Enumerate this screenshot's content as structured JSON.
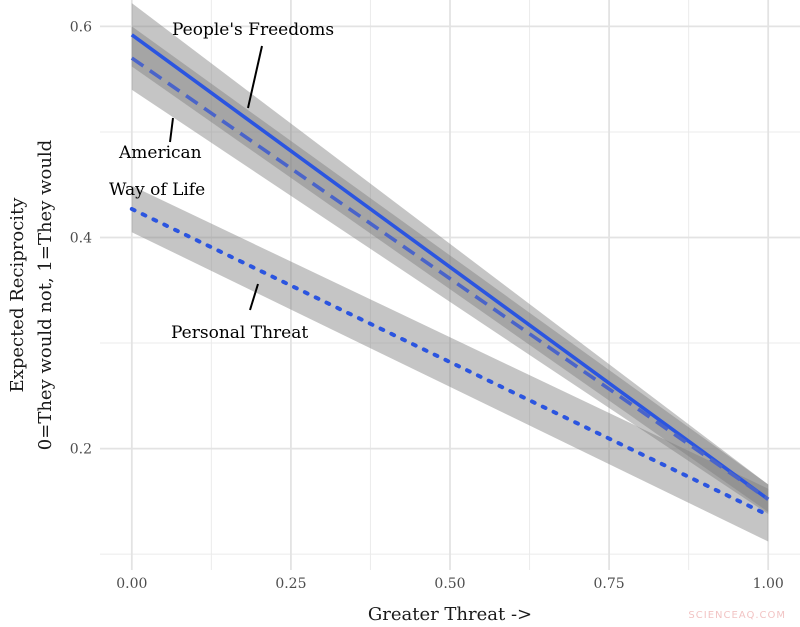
{
  "chart_data": {
    "type": "line",
    "xlabel": "Greater Threat ->",
    "ylabel_line1": "Expected Reciprocity",
    "ylabel_line2": "0=They would not, 1=They would",
    "xlim": [
      -0.05,
      1.05
    ],
    "ylim": [
      0.085,
      0.625
    ],
    "x_ticks": [
      0.0,
      0.25,
      0.5,
      0.75,
      1.0
    ],
    "x_tick_labels": [
      "0.00",
      "0.25",
      "0.50",
      "0.75",
      "1.00"
    ],
    "y_ticks": [
      0.2,
      0.4,
      0.6
    ],
    "y_tick_labels": [
      "0.2",
      "0.4",
      "0.6"
    ],
    "grid": true,
    "series": [
      {
        "name": "People's Freedoms",
        "line_style": "solid",
        "color": "#2b55e0",
        "x": [
          0,
          1
        ],
        "y": [
          0.592,
          0.152
        ],
        "ci_lower": [
          0.562,
          0.14
        ],
        "ci_upper": [
          0.622,
          0.166
        ]
      },
      {
        "name": "American Way of Life",
        "line_style": "dashed",
        "color": "#4a64c9",
        "x": [
          0,
          1
        ],
        "y": [
          0.57,
          0.152
        ],
        "ci_lower": [
          0.54,
          0.138
        ],
        "ci_upper": [
          0.6,
          0.166
        ]
      },
      {
        "name": "Personal Threat",
        "line_style": "dotted",
        "color": "#2b55e0",
        "x": [
          0,
          1
        ],
        "y": [
          0.427,
          0.137
        ],
        "ci_lower": [
          0.405,
          0.112
        ],
        "ci_upper": [
          0.449,
          0.162
        ]
      }
    ],
    "annotations": [
      {
        "text": "People's Freedoms",
        "series": "People's Freedoms"
      },
      {
        "text": "American",
        "series": "American Way of Life"
      },
      {
        "text": "Way of Life",
        "series": "American Way of Life"
      },
      {
        "text": "Personal Threat",
        "series": "Personal Threat"
      }
    ],
    "ci_color": "#7f7f7f"
  },
  "watermark": "SCIENCEAQ.COM"
}
